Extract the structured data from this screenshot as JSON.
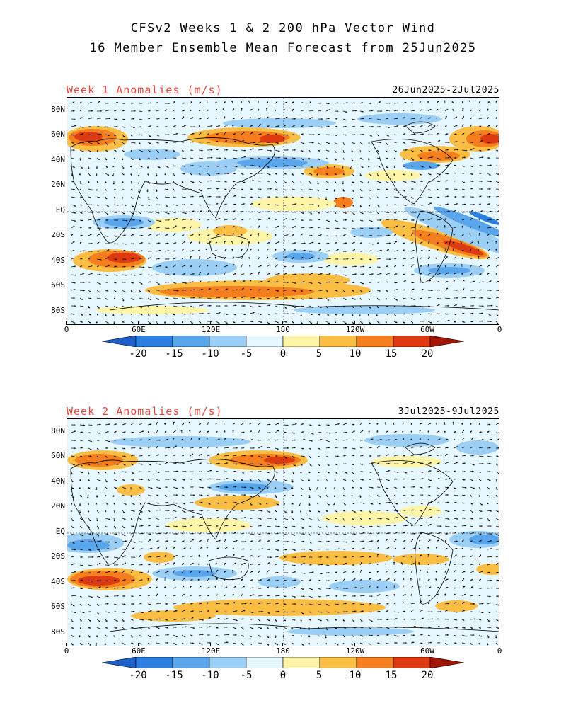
{
  "title": {
    "line1": "CFSv2 Weeks 1 & 2 200 hPa Vector Wind",
    "line2": "16 Member Ensemble Mean Forecast from 25Jun2025"
  },
  "panels": [
    {
      "id": "week1",
      "title": "Week 1 Anomalies (m/s)",
      "dates": "26Jun2025-2Jul2025"
    },
    {
      "id": "week2",
      "title": "Week 2 Anomalies (m/s)",
      "dates": "3Jul2025-9Jul2025"
    }
  ],
  "axes": {
    "lat_labels": [
      "80N",
      "60N",
      "40N",
      "20N",
      "EQ",
      "20S",
      "40S",
      "60S",
      "80S"
    ],
    "lon_labels": [
      "0",
      "60E",
      "120E",
      "180",
      "120W",
      "60W",
      "0"
    ]
  },
  "colorbar": {
    "tick_labels": [
      "-20",
      "-15",
      "-10",
      "-5",
      "0",
      "5",
      "10",
      "15",
      "20"
    ],
    "colors": [
      "#1c5fc8",
      "#2b7fe0",
      "#5aa6ec",
      "#9ccff5",
      "#e6f7ff",
      "#fff5a8",
      "#fbbe45",
      "#f57e1e",
      "#de3a12",
      "#a41505"
    ],
    "units": "m/s"
  }
}
